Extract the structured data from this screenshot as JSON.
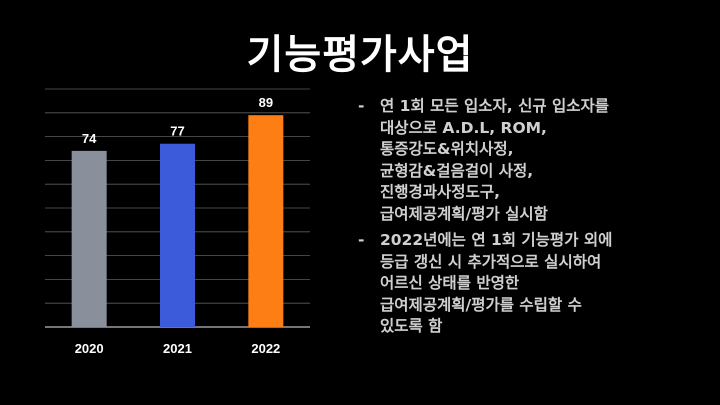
{
  "slide": {
    "title": "기능평가사업"
  },
  "chart_data": {
    "type": "bar",
    "categories": [
      "2020",
      "2021",
      "2022"
    ],
    "values": [
      74,
      77,
      89
    ],
    "colors": [
      "#8a8f9c",
      "#3b5bdb",
      "#fd7e14"
    ],
    "ylim": [
      0,
      100
    ],
    "grid": true,
    "title": "",
    "xlabel": "",
    "ylabel": ""
  },
  "bullets": [
    {
      "dash": "-",
      "lines": [
        "연 1회 모든 입소자, 신규 입소자를",
        "대상으로 A.D.L, ROM,",
        "통증강도&위치사정,",
        "균형감&걸음걸이 사정,",
        "진행경과사정도구,",
        "급여제공계획/평가 실시함"
      ]
    },
    {
      "dash": "-",
      "lines": [
        "2022년에는 연 1회 기능평가 외에",
        "등급 갱신 시 추가적으로 실시하여",
        "어르신 상태를 반영한",
        "급여제공계획/평가를 수립할 수",
        "있도록 함"
      ]
    }
  ]
}
